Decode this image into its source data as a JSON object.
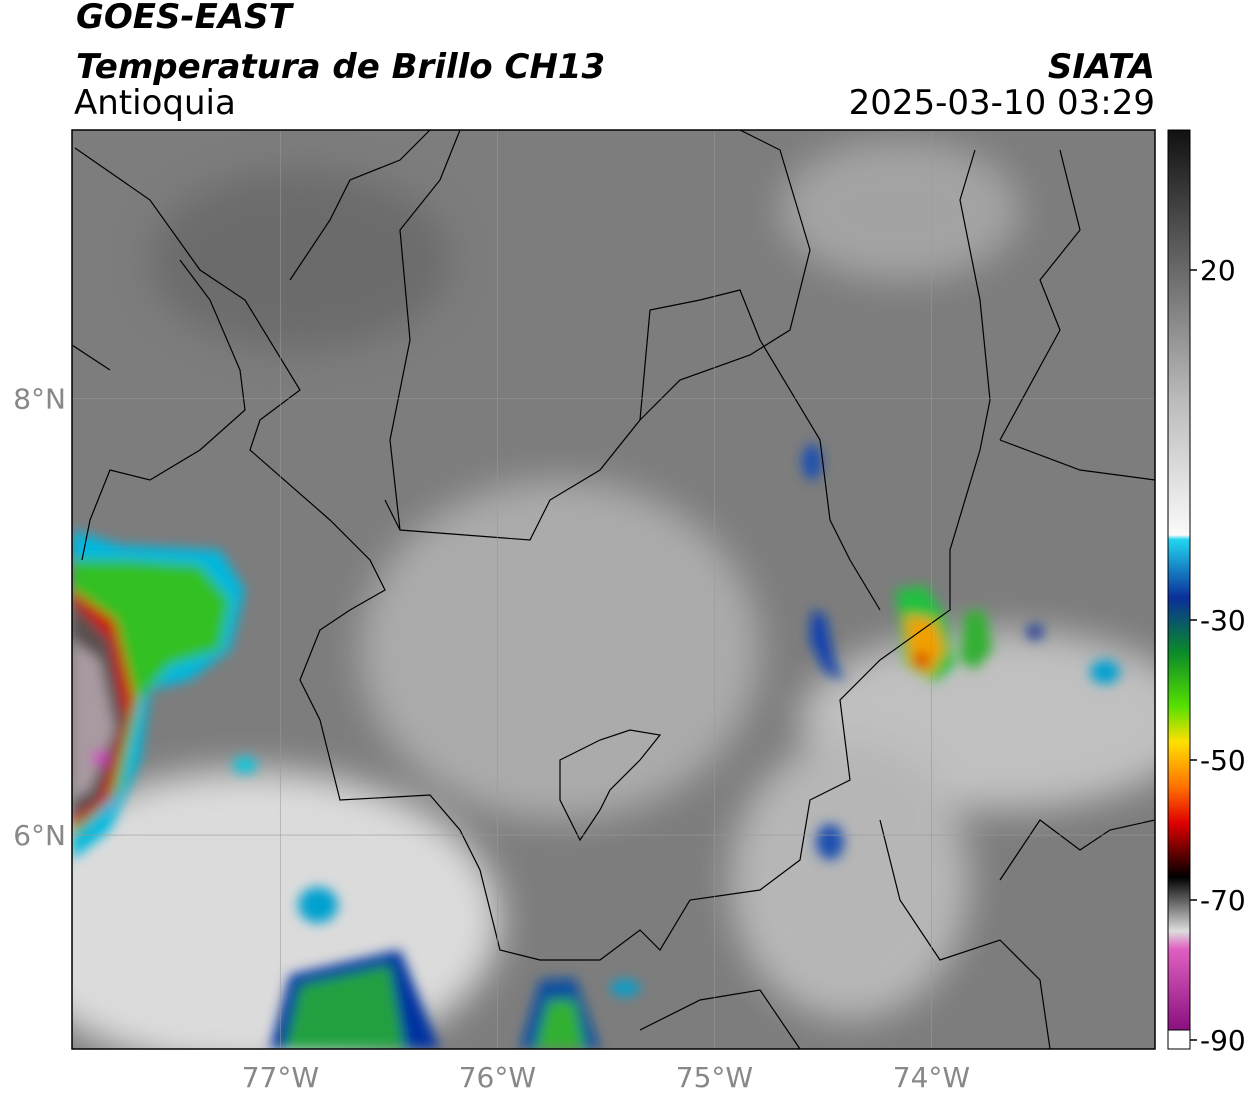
{
  "header": {
    "satellite": "GOES-EAST",
    "product": "Temperatura de Brillo CH13",
    "region": "Antioquia",
    "agency": "SIATA",
    "datetime": "2025-03-10 03:29"
  },
  "map": {
    "lon_lim": [
      -77.96,
      -72.97
    ],
    "lat_lim": [
      5.02,
      9.23
    ],
    "lon_ticks": [
      {
        "value": -77,
        "label": "77°W"
      },
      {
        "value": -76,
        "label": "76°W"
      },
      {
        "value": -75,
        "label": "75°W"
      },
      {
        "value": -74,
        "label": "74°W"
      }
    ],
    "lat_ticks": [
      {
        "value": 8,
        "label": "8°N"
      },
      {
        "value": 6,
        "label": "6°N"
      }
    ]
  },
  "colorbar": {
    "lim": [
      -90,
      40
    ],
    "ticks": [
      20,
      -30,
      -50,
      -70,
      -90
    ]
  }
}
